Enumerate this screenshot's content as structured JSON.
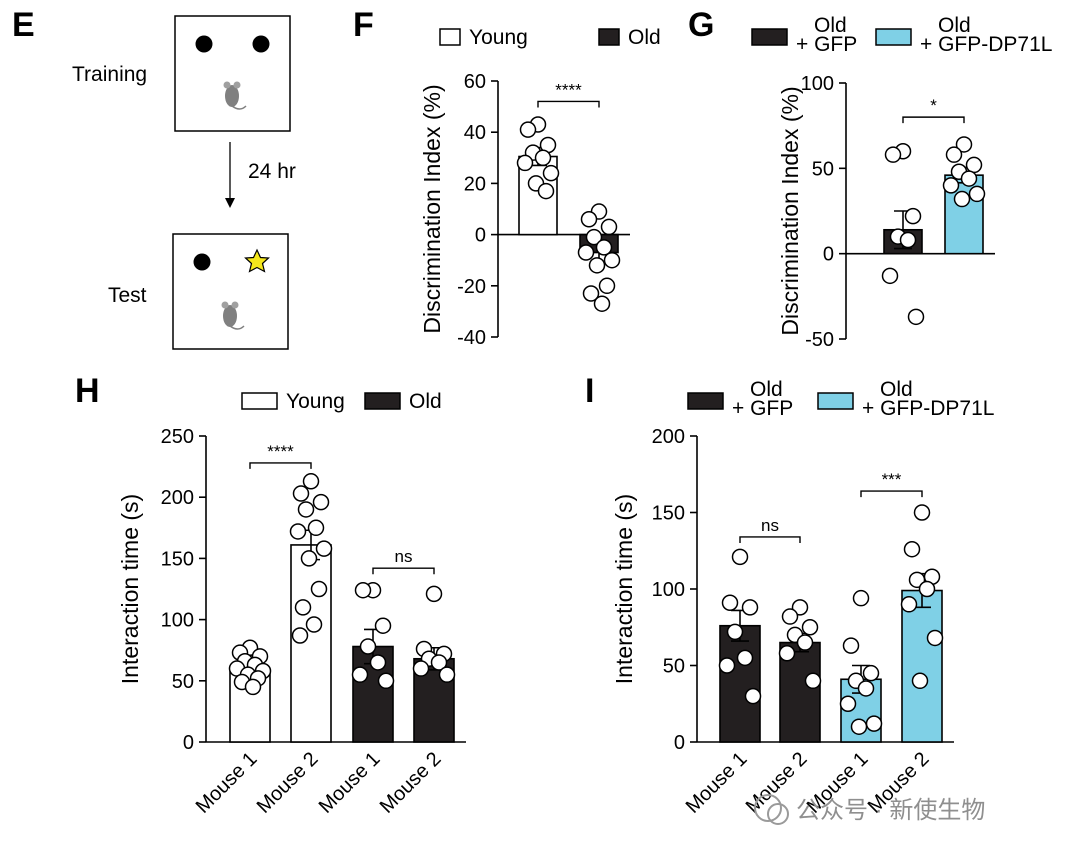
{
  "panels": {
    "E": {
      "letter": "E",
      "training_label": "Training",
      "interval_label": "24 hr",
      "test_label": "Test"
    },
    "F": {
      "letter": "F"
    },
    "G": {
      "letter": "G"
    },
    "H": {
      "letter": "H"
    },
    "I": {
      "letter": "I"
    }
  },
  "watermark": {
    "text": "公众号 · 新使生物"
  },
  "colors": {
    "young": "#ffffff",
    "old": "#231f20",
    "dp71l": "#7fd0e6",
    "star": "#f5e71b",
    "mouse": "#808080"
  },
  "chart_data": [
    {
      "id": "F",
      "type": "bar",
      "ylabel": "Discrimination Index (%)",
      "ylim": [
        -40,
        60
      ],
      "yticks": [
        60,
        40,
        20,
        0,
        -20,
        -40
      ],
      "categories": [
        "Young",
        "Old"
      ],
      "legend": [
        "Young",
        "Old"
      ],
      "series": [
        {
          "name": "Young",
          "color": "#ffffff",
          "mean": 30.5,
          "sem": 3.5,
          "points": [
            43,
            41,
            35,
            32,
            30,
            28,
            24,
            20,
            17
          ]
        },
        {
          "name": "Old",
          "color": "#231f20",
          "mean": -7,
          "sem": 4,
          "points": [
            9,
            6,
            3,
            -1,
            -5,
            -7,
            -10,
            -12,
            -20,
            -23,
            -27
          ]
        }
      ],
      "significance": [
        {
          "label": "****",
          "from": 0,
          "to": 1,
          "y": 52
        }
      ]
    },
    {
      "id": "G",
      "type": "bar",
      "ylabel": "Discrimination Index (%)",
      "ylim": [
        -50,
        100
      ],
      "yticks": [
        100,
        50,
        0,
        -50
      ],
      "categories": [
        "Old + GFP",
        "Old + GFP-DP71L"
      ],
      "legend": [
        "Old\n+ GFP",
        "Old\n+ GFP-DP71L"
      ],
      "series": [
        {
          "name": "Old + GFP",
          "color": "#231f20",
          "mean": 14,
          "sem": 11,
          "points": [
            60,
            58,
            22,
            10,
            8,
            -13,
            -37
          ]
        },
        {
          "name": "Old + GFP-DP71L",
          "color": "#7fd0e6",
          "mean": 46,
          "sem": 4.5,
          "points": [
            64,
            58,
            52,
            48,
            44,
            40,
            35,
            32
          ]
        }
      ],
      "significance": [
        {
          "label": "*",
          "from": 0,
          "to": 1,
          "y": 80
        }
      ]
    },
    {
      "id": "H",
      "type": "bar",
      "ylabel": "Interaction time (s)",
      "ylim": [
        0,
        250
      ],
      "yticks": [
        250,
        200,
        150,
        100,
        50,
        0
      ],
      "categories": [
        "Mouse 1",
        "Mouse 2",
        "Mouse 1",
        "Mouse 2"
      ],
      "legend": [
        "Young",
        "Old"
      ],
      "series": [
        {
          "name": "Young",
          "color": "#ffffff",
          "bars": [
            {
              "mean": 59,
              "sem": 4,
              "points": [
                77,
                73,
                70,
                66,
                63,
                60,
                58,
                55,
                52,
                49,
                45
              ]
            },
            {
              "mean": 161,
              "sem": 12,
              "points": [
                213,
                203,
                196,
                190,
                175,
                172,
                158,
                150,
                125,
                110,
                96,
                87
              ]
            }
          ]
        },
        {
          "name": "Old",
          "color": "#231f20",
          "bars": [
            {
              "mean": 78,
              "sem": 14,
              "points": [
                124,
                124,
                95,
                78,
                65,
                55,
                50
              ]
            },
            {
              "mean": 68,
              "sem": 9,
              "points": [
                121,
                76,
                72,
                68,
                65,
                60,
                55
              ]
            }
          ]
        }
      ],
      "significance": [
        {
          "label": "****",
          "from": 0,
          "to": 1,
          "y": 228
        },
        {
          "label": "ns",
          "from": 2,
          "to": 3,
          "y": 142
        }
      ]
    },
    {
      "id": "I",
      "type": "bar",
      "ylabel": "Interaction time (s)",
      "ylim": [
        0,
        200
      ],
      "yticks": [
        200,
        150,
        100,
        50,
        0
      ],
      "categories": [
        "Mouse 1",
        "Mouse 2",
        "Mouse 1",
        "Mouse 2"
      ],
      "legend": [
        "Old\n+ GFP",
        "Old\n+ GFP-DP71L"
      ],
      "series": [
        {
          "name": "Old + GFP",
          "color": "#231f20",
          "bars": [
            {
              "mean": 76,
              "sem": 10,
              "points": [
                121,
                91,
                88,
                72,
                55,
                50,
                30
              ]
            },
            {
              "mean": 65,
              "sem": 6,
              "points": [
                88,
                82,
                75,
                70,
                65,
                58,
                40
              ]
            }
          ]
        },
        {
          "name": "Old + GFP-DP71L",
          "color": "#7fd0e6",
          "bars": [
            {
              "mean": 41,
              "sem": 9,
              "points": [
                94,
                63,
                45,
                40,
                35,
                25,
                12,
                10
              ]
            },
            {
              "mean": 99,
              "sem": 11,
              "points": [
                150,
                126,
                108,
                106,
                100,
                90,
                68,
                40
              ]
            }
          ]
        }
      ],
      "significance": [
        {
          "label": "ns",
          "from": 0,
          "to": 1,
          "y": 134
        },
        {
          "label": "***",
          "from": 2,
          "to": 3,
          "y": 164
        }
      ]
    }
  ]
}
